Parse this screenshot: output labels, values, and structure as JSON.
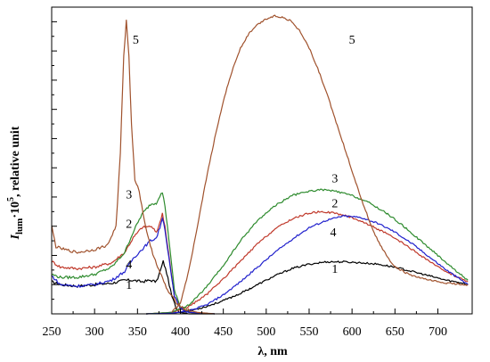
{
  "chart_data": {
    "type": "line",
    "title": "",
    "xlabel": "λ, nm",
    "ylabel_main": "I",
    "ylabel_sub": "lum",
    "ylabel_mid": "·10",
    "ylabel_sup": "5",
    "ylabel_rest": ", relative unit",
    "xlim": [
      250,
      740
    ],
    "ylim": [
      0,
      10.5
    ],
    "x_ticks": [
      250,
      300,
      350,
      400,
      450,
      500,
      550,
      600,
      650,
      700
    ],
    "y_ticks_count": 10,
    "grid": false,
    "legend": "inline labels",
    "series": [
      {
        "name": "1",
        "color": "#000000",
        "excitation": [
          [
            250,
            1.1
          ],
          [
            260,
            1.0
          ],
          [
            280,
            0.95
          ],
          [
            300,
            1.0
          ],
          [
            320,
            1.05
          ],
          [
            335,
            1.15
          ],
          [
            345,
            1.15
          ],
          [
            355,
            1.1
          ],
          [
            365,
            1.15
          ],
          [
            372,
            1.1
          ],
          [
            377,
            1.5
          ],
          [
            380,
            1.8
          ],
          [
            384,
            1.4
          ],
          [
            390,
            0.6
          ],
          [
            395,
            0.2
          ],
          [
            400,
            0.05
          ],
          [
            410,
            0.0
          ],
          [
            440,
            0.0
          ]
        ],
        "emission": [
          [
            360,
            0.0
          ],
          [
            390,
            0.02
          ],
          [
            410,
            0.1
          ],
          [
            430,
            0.25
          ],
          [
            450,
            0.45
          ],
          [
            470,
            0.7
          ],
          [
            490,
            1.0
          ],
          [
            510,
            1.3
          ],
          [
            530,
            1.55
          ],
          [
            550,
            1.7
          ],
          [
            570,
            1.78
          ],
          [
            590,
            1.78
          ],
          [
            610,
            1.75
          ],
          [
            630,
            1.7
          ],
          [
            650,
            1.6
          ],
          [
            670,
            1.45
          ],
          [
            690,
            1.3
          ],
          [
            710,
            1.15
          ],
          [
            730,
            1.05
          ],
          [
            735,
            1.0
          ]
        ],
        "label_pos": [
          1,
          2
        ]
      },
      {
        "name": "2",
        "color": "#c0392b",
        "excitation": [
          [
            250,
            1.8
          ],
          [
            260,
            1.6
          ],
          [
            280,
            1.55
          ],
          [
            300,
            1.6
          ],
          [
            320,
            1.75
          ],
          [
            335,
            2.1
          ],
          [
            345,
            2.6
          ],
          [
            355,
            2.95
          ],
          [
            365,
            3.0
          ],
          [
            372,
            2.8
          ],
          [
            376,
            3.1
          ],
          [
            379,
            3.45
          ],
          [
            382,
            3.0
          ],
          [
            388,
            1.7
          ],
          [
            393,
            0.6
          ],
          [
            400,
            0.2
          ],
          [
            410,
            0.05
          ],
          [
            440,
            0.0
          ]
        ],
        "emission": [
          [
            360,
            0.0
          ],
          [
            390,
            0.05
          ],
          [
            410,
            0.25
          ],
          [
            430,
            0.65
          ],
          [
            450,
            1.2
          ],
          [
            470,
            1.8
          ],
          [
            490,
            2.4
          ],
          [
            510,
            2.9
          ],
          [
            530,
            3.25
          ],
          [
            550,
            3.45
          ],
          [
            565,
            3.5
          ],
          [
            580,
            3.45
          ],
          [
            600,
            3.3
          ],
          [
            620,
            3.05
          ],
          [
            640,
            2.75
          ],
          [
            660,
            2.4
          ],
          [
            680,
            2.0
          ],
          [
            700,
            1.6
          ],
          [
            720,
            1.3
          ],
          [
            735,
            1.1
          ]
        ],
        "label_pos": [
          2,
          1
        ]
      },
      {
        "name": "3",
        "color": "#2e8b2e",
        "excitation": [
          [
            250,
            1.35
          ],
          [
            260,
            1.25
          ],
          [
            280,
            1.25
          ],
          [
            300,
            1.35
          ],
          [
            320,
            1.6
          ],
          [
            335,
            2.1
          ],
          [
            345,
            2.8
          ],
          [
            355,
            3.4
          ],
          [
            365,
            3.75
          ],
          [
            372,
            3.8
          ],
          [
            376,
            4.05
          ],
          [
            379,
            4.15
          ],
          [
            382,
            3.7
          ],
          [
            388,
            2.2
          ],
          [
            393,
            0.8
          ],
          [
            400,
            0.25
          ],
          [
            410,
            0.05
          ],
          [
            440,
            0.0
          ]
        ],
        "emission": [
          [
            360,
            0.0
          ],
          [
            390,
            0.05
          ],
          [
            410,
            0.3
          ],
          [
            430,
            0.9
          ],
          [
            450,
            1.65
          ],
          [
            470,
            2.5
          ],
          [
            490,
            3.2
          ],
          [
            510,
            3.7
          ],
          [
            530,
            4.05
          ],
          [
            550,
            4.2
          ],
          [
            565,
            4.25
          ],
          [
            580,
            4.2
          ],
          [
            600,
            4.05
          ],
          [
            620,
            3.8
          ],
          [
            640,
            3.45
          ],
          [
            660,
            3.0
          ],
          [
            680,
            2.5
          ],
          [
            700,
            2.0
          ],
          [
            720,
            1.5
          ],
          [
            735,
            1.15
          ]
        ],
        "label_pos": [
          3,
          0
        ]
      },
      {
        "name": "4",
        "color": "#1f1fcc",
        "excitation": [
          [
            250,
            1.3
          ],
          [
            260,
            1.0
          ],
          [
            280,
            0.95
          ],
          [
            300,
            1.0
          ],
          [
            320,
            1.15
          ],
          [
            335,
            1.45
          ],
          [
            345,
            1.9
          ],
          [
            355,
            2.2
          ],
          [
            365,
            2.5
          ],
          [
            372,
            2.6
          ],
          [
            376,
            2.95
          ],
          [
            379,
            3.3
          ],
          [
            382,
            2.9
          ],
          [
            388,
            1.6
          ],
          [
            393,
            0.6
          ],
          [
            400,
            0.2
          ],
          [
            410,
            0.05
          ],
          [
            440,
            0.0
          ]
        ],
        "emission": [
          [
            360,
            0.0
          ],
          [
            390,
            0.02
          ],
          [
            410,
            0.1
          ],
          [
            430,
            0.3
          ],
          [
            450,
            0.65
          ],
          [
            470,
            1.1
          ],
          [
            490,
            1.6
          ],
          [
            510,
            2.1
          ],
          [
            530,
            2.55
          ],
          [
            550,
            2.95
          ],
          [
            570,
            3.2
          ],
          [
            590,
            3.35
          ],
          [
            610,
            3.3
          ],
          [
            630,
            3.1
          ],
          [
            650,
            2.8
          ],
          [
            670,
            2.4
          ],
          [
            690,
            1.95
          ],
          [
            710,
            1.5
          ],
          [
            725,
            1.2
          ],
          [
            735,
            1.0
          ]
        ],
        "label_pos": [
          4,
          3
        ]
      },
      {
        "name": "5",
        "color": "#a0522d",
        "excitation": [
          [
            250,
            3.0
          ],
          [
            255,
            2.3
          ],
          [
            265,
            2.2
          ],
          [
            280,
            2.1
          ],
          [
            300,
            2.2
          ],
          [
            315,
            2.35
          ],
          [
            325,
            3.0
          ],
          [
            330,
            5.5
          ],
          [
            334,
            8.8
          ],
          [
            337,
            10.1
          ],
          [
            340,
            8.8
          ],
          [
            343,
            6.5
          ],
          [
            347,
            4.6
          ],
          [
            352,
            4.2
          ],
          [
            358,
            3.2
          ],
          [
            365,
            2.3
          ],
          [
            375,
            1.5
          ],
          [
            385,
            0.8
          ],
          [
            395,
            0.4
          ],
          [
            405,
            0.15
          ],
          [
            420,
            0.05
          ],
          [
            440,
            0.0
          ]
        ],
        "emission": [
          [
            390,
            0.05
          ],
          [
            400,
            0.35
          ],
          [
            410,
            1.5
          ],
          [
            420,
            3.0
          ],
          [
            430,
            4.6
          ],
          [
            440,
            6.0
          ],
          [
            450,
            7.3
          ],
          [
            460,
            8.3
          ],
          [
            470,
            9.1
          ],
          [
            480,
            9.6
          ],
          [
            490,
            9.9
          ],
          [
            500,
            10.1
          ],
          [
            510,
            10.2
          ],
          [
            520,
            10.15
          ],
          [
            530,
            10.0
          ],
          [
            540,
            9.65
          ],
          [
            550,
            9.1
          ],
          [
            560,
            8.4
          ],
          [
            570,
            7.6
          ],
          [
            580,
            6.7
          ],
          [
            590,
            5.8
          ],
          [
            600,
            4.9
          ],
          [
            610,
            4.0
          ],
          [
            620,
            3.2
          ],
          [
            630,
            2.5
          ],
          [
            640,
            2.0
          ],
          [
            650,
            1.6
          ],
          [
            670,
            1.3
          ],
          [
            690,
            1.15
          ],
          [
            710,
            1.05
          ],
          [
            735,
            1.0
          ]
        ],
        "label_pos": [
          0,
          4
        ]
      }
    ],
    "inline_labels": [
      {
        "text": "5",
        "x": 348,
        "y": 9.25
      },
      {
        "text": "3",
        "x": 340,
        "y": 3.95
      },
      {
        "text": "2",
        "x": 340,
        "y": 2.95
      },
      {
        "text": "4",
        "x": 340,
        "y": 1.55
      },
      {
        "text": "1",
        "x": 340,
        "y": 0.85
      },
      {
        "text": "5",
        "x": 600,
        "y": 9.25
      },
      {
        "text": "3",
        "x": 580,
        "y": 4.5
      },
      {
        "text": "2",
        "x": 580,
        "y": 3.65
      },
      {
        "text": "4",
        "x": 578,
        "y": 2.65
      },
      {
        "text": "1",
        "x": 580,
        "y": 1.4
      }
    ]
  }
}
